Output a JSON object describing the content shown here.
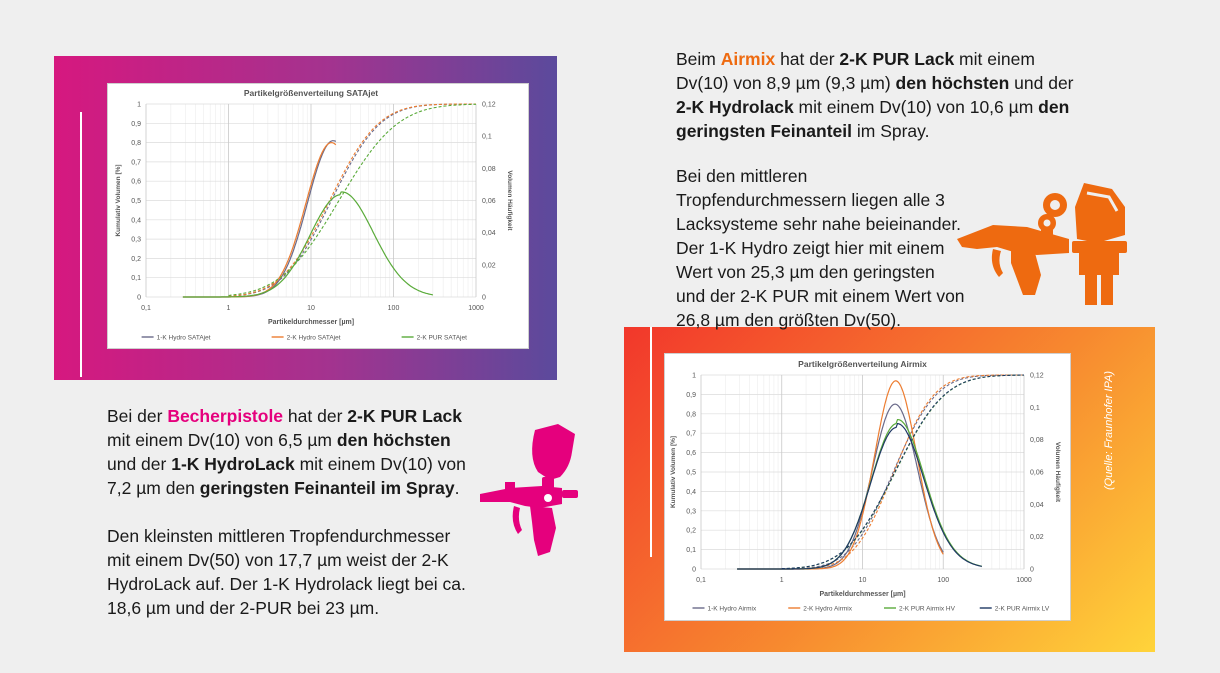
{
  "left_text": {
    "p1": [
      {
        "t": "Bei der ",
        "s": "n"
      },
      {
        "t": "Becherpistole",
        "s": "pink"
      },
      {
        "t": " hat der ",
        "s": "n"
      },
      {
        "t": "2-K PUR Lack",
        "s": "b"
      },
      {
        "t": " mit einem Dv(10) von 6,5 µm ",
        "s": "n"
      },
      {
        "t": "den höchsten",
        "s": "b"
      },
      {
        "t": " und der ",
        "s": "n"
      },
      {
        "t": "1-K HydroLack",
        "s": "b"
      },
      {
        "t": " mit einem Dv(10) von 7,2 µm den ",
        "s": "n"
      },
      {
        "t": "geringsten Feinanteil im Spray",
        "s": "b"
      },
      {
        "t": ".",
        "s": "n"
      }
    ],
    "p2": "Den kleinsten mittleren Tropfendurchmesser mit einem Dv(50) von 17,7 µm weist der 2-K HydroLack auf. Der 1-K Hydrolack liegt bei ca. 18,6 µm und der 2-PUR bei 23 µm."
  },
  "right_text": {
    "p1": [
      {
        "t": "Beim ",
        "s": "n"
      },
      {
        "t": "Airmix",
        "s": "orange"
      },
      {
        "t": " hat der ",
        "s": "n"
      },
      {
        "t": "2-K PUR Lack",
        "s": "b"
      },
      {
        "t": " mit einem Dv(10) von 8,9 µm (9,3 µm) ",
        "s": "n"
      },
      {
        "t": "den höchsten",
        "s": "b"
      },
      {
        "t": " und der ",
        "s": "n"
      },
      {
        "t": "2-K Hydrolack",
        "s": "b"
      },
      {
        "t": " mit einem Dv(10) von 10,6 µm ",
        "s": "n"
      },
      {
        "t": "den geringsten Feinanteil",
        "s": "b"
      },
      {
        "t": " im Spray.",
        "s": "n"
      }
    ],
    "p2": "Bei den mittleren Tropfendurchmessern liegen alle 3 Lacksysteme sehr nahe beieinander. Der 1-K Hydro zeigt hier mit einem Wert von 25,3 µm den geringsten und der 2-K PUR mit einem Wert von 26,8 µm den größten Dv(50)."
  },
  "source": "(Quelle: Fraunhofer IPA)",
  "colors": {
    "pink": "#e5007d",
    "orange": "#ee6a10",
    "hydro1k": "#6a6a8a",
    "hydro2k": "#ed7d31",
    "pur": "#5aab3a",
    "pur_lv": "#1f3864"
  },
  "icons": [
    "spray-gun-pink-icon",
    "spray-gun-orange-icon"
  ],
  "chart_data": [
    {
      "type": "line",
      "title": "Partikelgrößenverteilung SATAjet",
      "xlabel": "Partikeldurchmesser  [µm]",
      "ylabel": "Kumulativ Volumen [%]",
      "y2label": "Volumen Häufigkeit",
      "xscale": "log",
      "xlim": [
        0.1,
        1000
      ],
      "xticks": [
        "0,1",
        "1",
        "10",
        "100",
        "1000"
      ],
      "ylim": [
        0,
        1
      ],
      "yticks": [
        "0",
        "0,1",
        "0,2",
        "0,3",
        "0,4",
        "0,5",
        "0,6",
        "0,7",
        "0,8",
        "0,9",
        "1"
      ],
      "y2lim": [
        0,
        0.12
      ],
      "y2ticks": [
        "0",
        "0,02",
        "0,04",
        "0,06",
        "0,08",
        "0,1",
        "0,12"
      ],
      "legend_position": "bottom",
      "grid": true,
      "series": [
        {
          "name": "1-K Hydro SATAjet",
          "color": "#6a6a8a",
          "median": 18.6,
          "sigma": 0.5,
          "peak": 0.81,
          "density_max": 20
        },
        {
          "name": "2-K Hydro SATAjet",
          "color": "#ed7d31",
          "median": 17.7,
          "sigma": 0.5,
          "peak": 0.8,
          "density_max": 20
        },
        {
          "name": "2-K PUR SATAjet",
          "color": "#5aab3a",
          "median": 23,
          "sigma": 0.6,
          "peak": 0.53,
          "density_max": 300
        }
      ]
    },
    {
      "type": "line",
      "title": "Partikelgrößenverteilung Airmix",
      "xlabel": "Partikeldurchmesser  [µm]",
      "ylabel": "Kumulativ Volumen [%]",
      "y2label": "Volumen Häufigkeit",
      "xscale": "log",
      "xlim": [
        0.1,
        1000
      ],
      "xticks": [
        "0,1",
        "1",
        "10",
        "100",
        "1000"
      ],
      "ylim": [
        0,
        1
      ],
      "yticks": [
        "0",
        "0,1",
        "0,2",
        "0,3",
        "0,4",
        "0,5",
        "0,6",
        "0,7",
        "0,8",
        "0,9",
        "1"
      ],
      "y2lim": [
        0,
        0.12
      ],
      "y2ticks": [
        "0",
        "0,02",
        "0,04",
        "0,06",
        "0,08",
        "0,1",
        "0,12"
      ],
      "legend_position": "bottom",
      "grid": true,
      "series": [
        {
          "name": "1-K Hydro Airmix",
          "color": "#6a6a8a",
          "median": 25.3,
          "sigma": 0.45,
          "peak": 0.85,
          "density_max": 100
        },
        {
          "name": "2-K Hydro Airmix",
          "color": "#ed7d31",
          "median": 25.8,
          "sigma": 0.42,
          "peak": 0.97,
          "density_max": 100
        },
        {
          "name": "2-K PUR Airmix HV",
          "color": "#5aab3a",
          "median": 26.8,
          "sigma": 0.52,
          "peak": 0.75,
          "density_max": 300
        },
        {
          "name": "2-K PUR Airmix LV",
          "color": "#1f3864",
          "median": 26.5,
          "sigma": 0.52,
          "peak": 0.73,
          "density_max": 300
        }
      ]
    }
  ]
}
